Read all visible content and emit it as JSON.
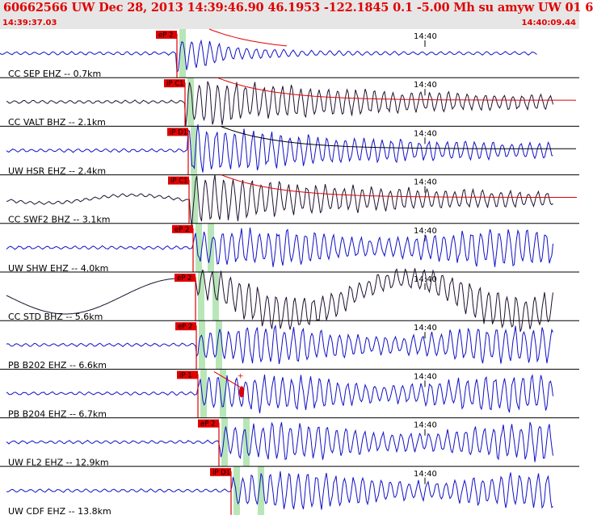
{
  "header": {
    "title": "60662566 UW Dec 28, 2013 14:39:46.90    46.1953 -122.1845  0.1 -5.00 Mh su amyw UW 01    6",
    "start_time": "14:39:37.03",
    "end_time": "14:40:09.44",
    "minute_label": "14:40"
  },
  "colors": {
    "trace_blue": "#1010c8",
    "trace_black": "#201030",
    "pick": "#e00000",
    "window": "#b8e6b8",
    "header_bg": "#e6e6e6"
  },
  "traces": [
    {
      "label": "CC SEP EHZ -- 0.7km",
      "pick": "eP 2",
      "color": "blue"
    },
    {
      "label": "CC VALT BHZ -- 2.1km",
      "pick": "iP C1",
      "color": "black"
    },
    {
      "label": "UW HSR EHZ -- 2.4km",
      "pick": "iP D1",
      "color": "blue"
    },
    {
      "label": "CC SWF2 BHZ -- 3.1km",
      "pick": "iP C1",
      "color": "black"
    },
    {
      "label": "UW SHW EHZ -- 4.0km",
      "pick": "eP 2",
      "color": "blue"
    },
    {
      "label": "CC STD BHZ -- 5.6km",
      "pick": "eP 2",
      "color": "black"
    },
    {
      "label": "PB B202 EHZ -- 6.6km",
      "pick": "eP 2",
      "color": "blue"
    },
    {
      "label": "PB B204 EHZ -- 6.7km",
      "pick": "iP 1",
      "color": "blue"
    },
    {
      "label": "UW FL2 EHZ -- 12.9km",
      "pick": "eP 2",
      "color": "blue"
    },
    {
      "label": "UW CDF EHZ -- 13.8km",
      "pick": "iP D1",
      "color": "blue"
    }
  ]
}
